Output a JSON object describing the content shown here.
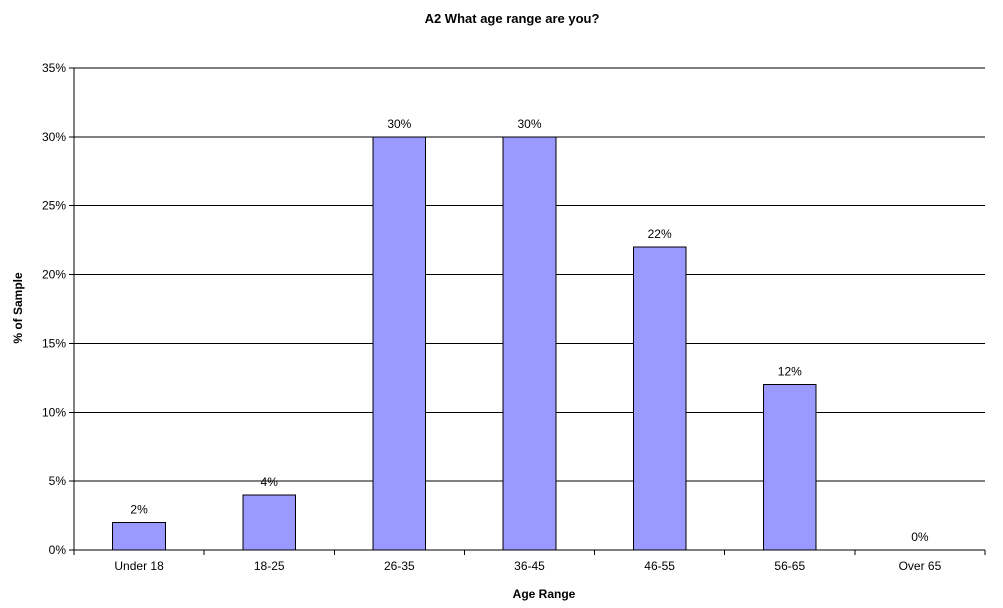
{
  "chart_data": {
    "type": "bar",
    "title": "A2 What age range are you?",
    "xlabel": "Age Range",
    "ylabel": "% of Sample",
    "categories": [
      "Under 18",
      "18-25",
      "26-35",
      "36-45",
      "46-55",
      "56-65",
      "Over 65"
    ],
    "values": [
      2,
      4,
      30,
      30,
      22,
      12,
      0
    ],
    "value_labels": [
      "2%",
      "4%",
      "30%",
      "30%",
      "22%",
      "12%",
      "0%"
    ],
    "ylim": [
      0,
      35
    ],
    "yticks": [
      0,
      5,
      10,
      15,
      20,
      25,
      30,
      35
    ],
    "ytick_labels": [
      "0%",
      "5%",
      "10%",
      "15%",
      "20%",
      "25%",
      "30%",
      "35%"
    ],
    "grid": true,
    "legend": "none",
    "bar_color": "#9999ff",
    "bar_edge_color": "#000000"
  }
}
